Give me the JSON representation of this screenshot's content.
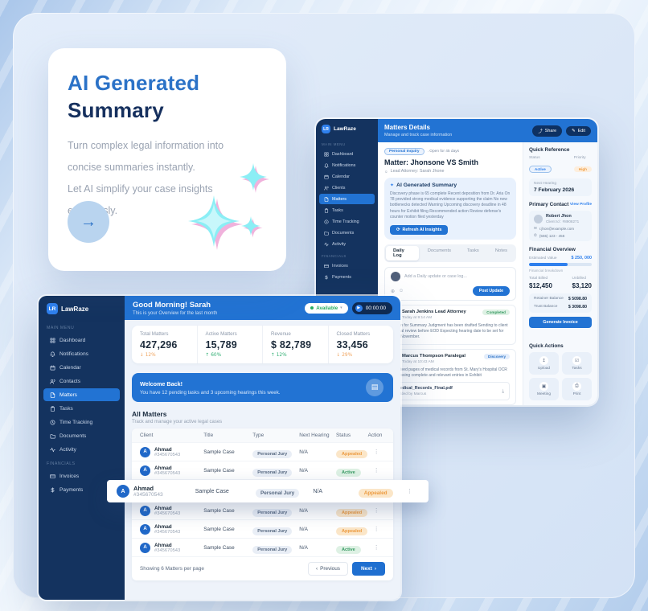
{
  "icons": {
    "arrow_right": "→",
    "caret_down": "▾",
    "play": "▶",
    "dots_vertical": "⋮",
    "chevron_left": "‹",
    "chevron_right": "›",
    "sparkle": "✦",
    "refresh": "⟳",
    "paperclip": "⊕",
    "smiley": "☺",
    "download": "⤓",
    "person": "👤",
    "mail": "✉",
    "phone": "✆",
    "share": "⤴",
    "edit": "✎",
    "upload": "↥",
    "task_check": "☑",
    "meeting": "▣",
    "print": "⎙",
    "document": "▤"
  },
  "colors": {
    "accent": "#2273d3",
    "navy": "#14335f",
    "green": "#2fae72",
    "orange": "#f0a35c"
  },
  "promo_card": {
    "title_line1": "AI Generated",
    "title_line2": "Summary",
    "description_lines": [
      "Turn complex legal information into",
      "concise summaries instantly.",
      "Let AI simplify your case insights",
      "effortlessly."
    ]
  },
  "brand": {
    "logo": "LR",
    "name": "LawRaze"
  },
  "back_app": {
    "sidebar": {
      "menu_label": "MAIN MENU",
      "items": [
        {
          "icon": "grid",
          "label": "Dashboard"
        },
        {
          "icon": "bell",
          "label": "Notifications"
        },
        {
          "icon": "calendar",
          "label": "Calendar"
        },
        {
          "icon": "users",
          "label": "Clients"
        },
        {
          "icon": "file",
          "label": "Matters",
          "active": true
        },
        {
          "icon": "clipboard",
          "label": "Tasks"
        },
        {
          "icon": "clock",
          "label": "Time Tracking"
        },
        {
          "icon": "folder",
          "label": "Documents"
        },
        {
          "icon": "activity",
          "label": "Activity"
        }
      ],
      "financials_label": "FINANCIALS",
      "financial_items": [
        {
          "icon": "card",
          "label": "Invoices"
        },
        {
          "icon": "dollar",
          "label": "Payments"
        }
      ]
    },
    "header": {
      "title": "Matters Details",
      "subtitle": "Manage and track case information",
      "share_label": "Share",
      "edit_label": "Edit"
    },
    "matter": {
      "type_badge": "Personal Inquiry",
      "open_for": ". Open for 45 days",
      "title": "Matter: Jhonsone VS Smith",
      "attorney": "Lead Attorney: Sarah Jhone"
    },
    "ai_summary": {
      "title": "AI Generated Summary",
      "body": "Discovery phase is 65 complete Recent deposition from Dr. Aria On 78 provided strong medical evidence supporting the claim No new bottlenecks detected Warning Upcoming discovery deadline in 48 hours for Exhibit filing Recommended action Review defense's counter motion filed yesterday",
      "button_label": "Refresh AI Insights"
    },
    "tabs": [
      {
        "label": "Daily Log",
        "active": true
      },
      {
        "label": "Documents"
      },
      {
        "label": "Tasks"
      },
      {
        "label": "Notes"
      }
    ],
    "composer": {
      "placeholder": "Add a Daily update or case log...",
      "post_label": "Post Update"
    },
    "feed": [
      {
        "author": "Sarah Jenkins Lead Attorney",
        "time": "Today at 9:14 AM",
        "badge": "Completed",
        "badge_color": "green",
        "text": "Motion for Summary Judgment has been drafted Sending to client for final review before EOD Expecting hearing date to be set for early November."
      },
      {
        "author": "Marcus Thompson Paralegal",
        "time": "Today at 10:43 AM",
        "badge": "Discovery",
        "badge_color": "blue",
        "text": "Received pages of medical records from St. Mary's Hospital OCR processing complete and relevant entries in Exhibit",
        "file_name": "Medical_Records_Final.pdf",
        "file_meta": "Added by Marcus"
      }
    ],
    "quick_reference": {
      "title": "Quick Reference",
      "status_label": "Status",
      "status_value": "Active",
      "priority_label": "Priority",
      "priority_value": "High",
      "next_hearing_label": "Next Hearing",
      "next_hearing_value": "7 February 2026",
      "primary_contact_label": "Primary Contact",
      "view_profile_label": "View Profile",
      "contact_name": "Robert Jhon",
      "contact_id": "Client Id : #8908271",
      "contact_email": "r.jhon@example.com",
      "contact_phone": "(555) 123 - 456"
    },
    "financial": {
      "title": "Financial Overview",
      "estimated_label": "Estimated Value",
      "estimated_value": "$ 250, 000",
      "breakdown_note": "Financial breakdown",
      "billed_label": "Total Billed",
      "billed_value": "$12,450",
      "unbilled_label": "Unbilled",
      "unbilled_value": "$3,120",
      "retainer_label": "Retainer Balance",
      "retainer_value": "$ 5098.80",
      "trust_label": "Trust Balance",
      "trust_value": "$ 3098.80",
      "invoice_button": "Generate Invoice"
    },
    "quick_actions": {
      "title": "Quick Actions",
      "items": [
        {
          "icon": "upload",
          "label": "Upload"
        },
        {
          "icon": "task_check",
          "label": "Tasks"
        },
        {
          "icon": "meeting",
          "label": "Meeting"
        },
        {
          "icon": "print",
          "label": "Print"
        }
      ]
    }
  },
  "front_app": {
    "sidebar": {
      "menu_label": "MAIN MENU",
      "items": [
        {
          "icon": "grid",
          "label": "Dashboard"
        },
        {
          "icon": "bell",
          "label": "Notifications"
        },
        {
          "icon": "calendar",
          "label": "Calendar"
        },
        {
          "icon": "users",
          "label": "Contacts"
        },
        {
          "icon": "file",
          "label": "Matters",
          "active": true
        },
        {
          "icon": "clipboard",
          "label": "Tasks"
        },
        {
          "icon": "clock",
          "label": "Time Tracking"
        },
        {
          "icon": "folder",
          "label": "Documents"
        },
        {
          "icon": "activity",
          "label": "Activity"
        }
      ],
      "financials_label": "FINANCIALS",
      "financial_items": [
        {
          "icon": "card",
          "label": "Invoices"
        },
        {
          "icon": "dollar",
          "label": "Payments"
        }
      ]
    },
    "header": {
      "greeting": "Good Morning! Sarah",
      "subtitle": "This is your Overview for the last month",
      "availability": "Available",
      "timer": "00:00:00"
    },
    "stats": [
      {
        "label": "Total Matters",
        "value": "427,296",
        "delta": "↓ 12%",
        "trend": "down"
      },
      {
        "label": "Active Matters",
        "value": "15,789",
        "delta": "↑ 60%",
        "trend": "up"
      },
      {
        "label": "Revenue",
        "value": "$ 82,789",
        "delta": "↑ 12%",
        "trend": "up"
      },
      {
        "label": "Closed Matters",
        "value": "33,456",
        "delta": "↓ 29%",
        "trend": "down"
      }
    ],
    "banner": {
      "title": "Welcome Back!",
      "subtitle": "You have 12 pending tasks and 3 upcoming hearings this week."
    },
    "matters": {
      "title": "All Matters",
      "subtitle": "Track and manage your active legal cases",
      "columns": [
        "Client",
        "Title",
        "Type",
        "Next Hearing",
        "Status",
        "Action"
      ],
      "rows": [
        {
          "client": "Ahmad",
          "id": "#345670543",
          "title": "Sample Case",
          "type": "Personal Jury",
          "hearing": "N/A",
          "status": "Appealed",
          "status_type": "appealed"
        },
        {
          "client": "Ahmad",
          "id": "#345670543",
          "title": "Sample Case",
          "type": "Personal Jury",
          "hearing": "N/A",
          "status": "Active",
          "status_type": "active"
        },
        {
          "client": "Ahmad",
          "id": "#345670543",
          "title": "Sample Case",
          "type": "Personal Jury",
          "hearing": "N/A",
          "status": "Appealed",
          "status_type": "appealed",
          "popped": true
        },
        {
          "client": "Ahmad",
          "id": "#345670543",
          "title": "Sample Case",
          "type": "Personal Jury",
          "hearing": "N/A",
          "status": "Appealed",
          "status_type": "appealed"
        },
        {
          "client": "Ahmad",
          "id": "#345670543",
          "title": "Sample Case",
          "type": "Personal Jury",
          "hearing": "N/A",
          "status": "Appealed",
          "status_type": "appealed"
        },
        {
          "client": "Ahmad",
          "id": "#345670543",
          "title": "Sample Case",
          "type": "Personal Jury",
          "hearing": "N/A",
          "status": "Active",
          "status_type": "active"
        }
      ],
      "footer_text": "Showing 6 Matters per page",
      "previous_label": "Previous",
      "next_label": "Next"
    }
  }
}
